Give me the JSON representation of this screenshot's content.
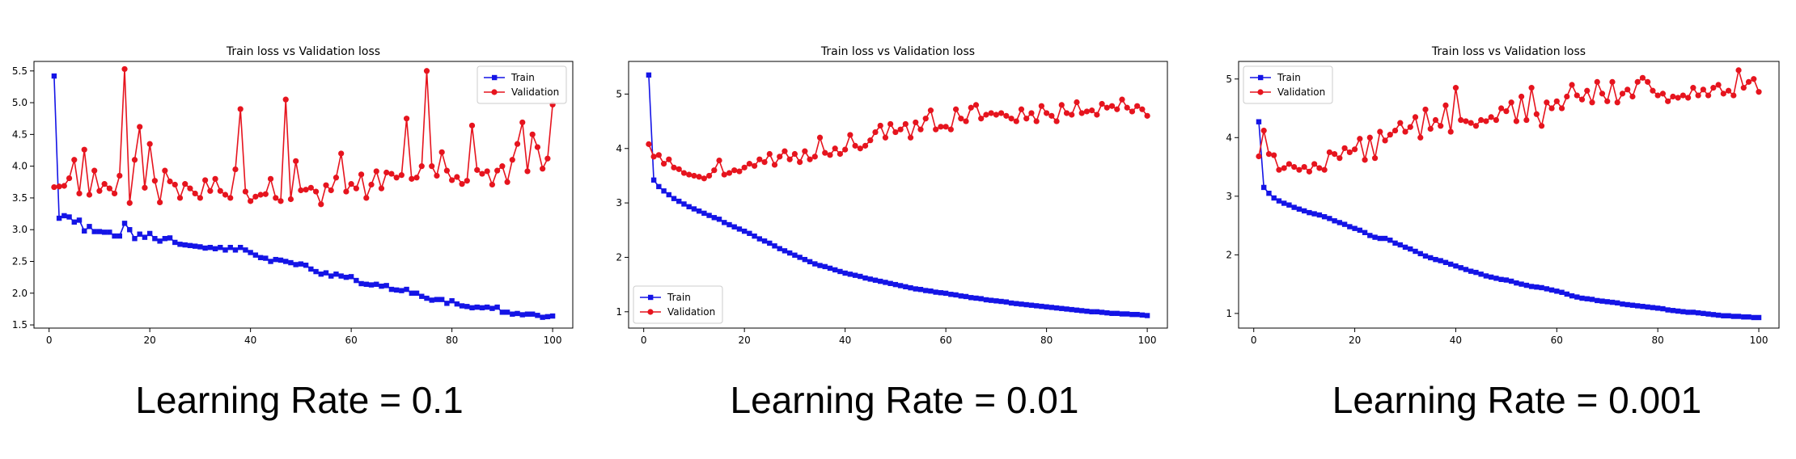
{
  "colors": {
    "train": "#1414e6",
    "validation": "#e6141e",
    "axis": "#000000"
  },
  "captions": [
    "Learning Rate = 0.1",
    "Learning Rate = 0.01",
    "Learning Rate = 0.001"
  ],
  "chart_data": [
    {
      "type": "line",
      "title": "Train loss vs Validation loss",
      "xlabel": "",
      "ylabel": "",
      "xlim": [
        -3,
        104
      ],
      "ylim": [
        1.45,
        5.65
      ],
      "xticks": [
        0,
        20,
        40,
        60,
        80,
        100
      ],
      "yticks": [
        1.5,
        2.0,
        2.5,
        3.0,
        3.5,
        4.0,
        4.5,
        5.0,
        5.5
      ],
      "ytick_labels": [
        "1.5",
        "2.0",
        "2.5",
        "3.0",
        "3.5",
        "4.0",
        "4.5",
        "5.0",
        "5.5"
      ],
      "legend": "upper right",
      "x": [
        1,
        2,
        3,
        4,
        5,
        6,
        7,
        8,
        9,
        10,
        11,
        12,
        13,
        14,
        15,
        16,
        17,
        18,
        19,
        20,
        21,
        22,
        23,
        24,
        25,
        26,
        27,
        28,
        29,
        30,
        31,
        32,
        33,
        34,
        35,
        36,
        37,
        38,
        39,
        40,
        41,
        42,
        43,
        44,
        45,
        46,
        47,
        48,
        49,
        50,
        51,
        52,
        53,
        54,
        55,
        56,
        57,
        58,
        59,
        60,
        61,
        62,
        63,
        64,
        65,
        66,
        67,
        68,
        69,
        70,
        71,
        72,
        73,
        74,
        75,
        76,
        77,
        78,
        79,
        80,
        81,
        82,
        83,
        84,
        85,
        86,
        87,
        88,
        89,
        90,
        91,
        92,
        93,
        94,
        95,
        96,
        97,
        98,
        99,
        100
      ],
      "series": [
        {
          "name": "Train",
          "marker": "square",
          "values": [
            5.42,
            3.18,
            3.22,
            3.2,
            3.12,
            3.15,
            2.98,
            3.05,
            2.97,
            2.97,
            2.96,
            2.96,
            2.9,
            2.9,
            3.1,
            3.0,
            2.86,
            2.93,
            2.88,
            2.94,
            2.86,
            2.82,
            2.86,
            2.87,
            2.8,
            2.77,
            2.76,
            2.75,
            2.74,
            2.73,
            2.71,
            2.72,
            2.7,
            2.72,
            2.68,
            2.72,
            2.68,
            2.72,
            2.68,
            2.64,
            2.6,
            2.56,
            2.55,
            2.5,
            2.53,
            2.52,
            2.5,
            2.48,
            2.45,
            2.46,
            2.44,
            2.38,
            2.34,
            2.3,
            2.32,
            2.27,
            2.3,
            2.27,
            2.25,
            2.26,
            2.2,
            2.15,
            2.14,
            2.13,
            2.14,
            2.11,
            2.12,
            2.06,
            2.05,
            2.04,
            2.06,
            2.0,
            2.0,
            1.95,
            1.92,
            1.89,
            1.9,
            1.9,
            1.84,
            1.88,
            1.83,
            1.8,
            1.79,
            1.77,
            1.78,
            1.77,
            1.78,
            1.76,
            1.78,
            1.7,
            1.7,
            1.67,
            1.68,
            1.66,
            1.67,
            1.67,
            1.65,
            1.62,
            1.63,
            1.64
          ]
        },
        {
          "name": "Validation",
          "marker": "circle",
          "values": [
            3.67,
            3.68,
            3.69,
            3.81,
            4.1,
            3.57,
            4.26,
            3.55,
            3.93,
            3.61,
            3.72,
            3.65,
            3.57,
            3.85,
            5.53,
            3.42,
            4.1,
            4.62,
            3.66,
            4.35,
            3.77,
            3.43,
            3.93,
            3.76,
            3.71,
            3.5,
            3.72,
            3.65,
            3.57,
            3.5,
            3.78,
            3.61,
            3.8,
            3.61,
            3.55,
            3.5,
            3.95,
            4.9,
            3.6,
            3.45,
            3.52,
            3.55,
            3.56,
            3.8,
            3.5,
            3.45,
            5.05,
            3.48,
            4.08,
            3.62,
            3.63,
            3.66,
            3.6,
            3.4,
            3.7,
            3.62,
            3.82,
            4.2,
            3.6,
            3.72,
            3.65,
            3.87,
            3.5,
            3.71,
            3.92,
            3.65,
            3.9,
            3.88,
            3.82,
            3.86,
            4.75,
            3.8,
            3.82,
            4.0,
            5.5,
            4.0,
            3.85,
            4.22,
            3.93,
            3.78,
            3.83,
            3.72,
            3.77,
            4.64,
            3.94,
            3.88,
            3.92,
            3.71,
            3.93,
            4.0,
            3.75,
            4.1,
            4.35,
            4.69,
            3.92,
            4.5,
            4.3,
            3.96,
            4.12,
            4.97
          ]
        }
      ]
    },
    {
      "type": "line",
      "title": "Train loss vs Validation loss",
      "xlabel": "",
      "ylabel": "",
      "xlim": [
        -3,
        104
      ],
      "ylim": [
        0.7,
        5.6
      ],
      "xticks": [
        0,
        20,
        40,
        60,
        80,
        100
      ],
      "yticks": [
        1,
        2,
        3,
        4,
        5
      ],
      "ytick_labels": [
        "1",
        "2",
        "3",
        "4",
        "5"
      ],
      "legend": "lower left",
      "x": [
        1,
        2,
        3,
        4,
        5,
        6,
        7,
        8,
        9,
        10,
        11,
        12,
        13,
        14,
        15,
        16,
        17,
        18,
        19,
        20,
        21,
        22,
        23,
        24,
        25,
        26,
        27,
        28,
        29,
        30,
        31,
        32,
        33,
        34,
        35,
        36,
        37,
        38,
        39,
        40,
        41,
        42,
        43,
        44,
        45,
        46,
        47,
        48,
        49,
        50,
        51,
        52,
        53,
        54,
        55,
        56,
        57,
        58,
        59,
        60,
        61,
        62,
        63,
        64,
        65,
        66,
        67,
        68,
        69,
        70,
        71,
        72,
        73,
        74,
        75,
        76,
        77,
        78,
        79,
        80,
        81,
        82,
        83,
        84,
        85,
        86,
        87,
        88,
        89,
        90,
        91,
        92,
        93,
        94,
        95,
        96,
        97,
        98,
        99,
        100
      ],
      "series": [
        {
          "name": "Train",
          "marker": "square",
          "values": [
            5.35,
            3.42,
            3.3,
            3.22,
            3.15,
            3.08,
            3.03,
            2.98,
            2.93,
            2.89,
            2.85,
            2.81,
            2.77,
            2.73,
            2.7,
            2.64,
            2.6,
            2.56,
            2.52,
            2.48,
            2.44,
            2.39,
            2.34,
            2.3,
            2.26,
            2.21,
            2.16,
            2.12,
            2.08,
            2.04,
            2.0,
            1.96,
            1.92,
            1.88,
            1.85,
            1.83,
            1.8,
            1.77,
            1.74,
            1.71,
            1.69,
            1.67,
            1.65,
            1.62,
            1.6,
            1.58,
            1.56,
            1.54,
            1.52,
            1.5,
            1.48,
            1.46,
            1.44,
            1.42,
            1.41,
            1.39,
            1.38,
            1.36,
            1.35,
            1.34,
            1.32,
            1.31,
            1.29,
            1.28,
            1.26,
            1.25,
            1.24,
            1.22,
            1.21,
            1.2,
            1.19,
            1.18,
            1.16,
            1.15,
            1.14,
            1.13,
            1.12,
            1.11,
            1.1,
            1.09,
            1.08,
            1.07,
            1.06,
            1.05,
            1.04,
            1.03,
            1.02,
            1.01,
            1.0,
            1.0,
            0.99,
            0.98,
            0.97,
            0.97,
            0.96,
            0.96,
            0.95,
            0.95,
            0.94,
            0.93
          ]
        },
        {
          "name": "Validation",
          "marker": "circle",
          "values": [
            4.08,
            3.85,
            3.88,
            3.72,
            3.8,
            3.65,
            3.62,
            3.55,
            3.52,
            3.5,
            3.48,
            3.45,
            3.5,
            3.6,
            3.78,
            3.52,
            3.55,
            3.6,
            3.58,
            3.65,
            3.72,
            3.68,
            3.8,
            3.75,
            3.9,
            3.7,
            3.85,
            3.95,
            3.8,
            3.9,
            3.75,
            3.95,
            3.8,
            3.85,
            4.2,
            3.92,
            3.88,
            4.0,
            3.9,
            3.98,
            4.25,
            4.05,
            4.0,
            4.05,
            4.15,
            4.3,
            4.42,
            4.2,
            4.45,
            4.3,
            4.35,
            4.45,
            4.2,
            4.48,
            4.35,
            4.55,
            4.7,
            4.35,
            4.4,
            4.4,
            4.35,
            4.72,
            4.55,
            4.5,
            4.75,
            4.8,
            4.55,
            4.62,
            4.65,
            4.62,
            4.65,
            4.6,
            4.55,
            4.5,
            4.72,
            4.55,
            4.65,
            4.5,
            4.78,
            4.65,
            4.6,
            4.5,
            4.8,
            4.65,
            4.62,
            4.85,
            4.65,
            4.68,
            4.7,
            4.62,
            4.82,
            4.75,
            4.78,
            4.72,
            4.9,
            4.75,
            4.68,
            4.78,
            4.72,
            4.6
          ]
        }
      ]
    },
    {
      "type": "line",
      "title": "Train loss vs Validation loss",
      "xlabel": "",
      "ylabel": "",
      "xlim": [
        -3,
        104
      ],
      "ylim": [
        0.75,
        5.3
      ],
      "xticks": [
        0,
        20,
        40,
        60,
        80,
        100
      ],
      "yticks": [
        1,
        2,
        3,
        4,
        5
      ],
      "ytick_labels": [
        "1",
        "2",
        "3",
        "4",
        "5"
      ],
      "legend": "upper left",
      "x": [
        1,
        2,
        3,
        4,
        5,
        6,
        7,
        8,
        9,
        10,
        11,
        12,
        13,
        14,
        15,
        16,
        17,
        18,
        19,
        20,
        21,
        22,
        23,
        24,
        25,
        26,
        27,
        28,
        29,
        30,
        31,
        32,
        33,
        34,
        35,
        36,
        37,
        38,
        39,
        40,
        41,
        42,
        43,
        44,
        45,
        46,
        47,
        48,
        49,
        50,
        51,
        52,
        53,
        54,
        55,
        56,
        57,
        58,
        59,
        60,
        61,
        62,
        63,
        64,
        65,
        66,
        67,
        68,
        69,
        70,
        71,
        72,
        73,
        74,
        75,
        76,
        77,
        78,
        79,
        80,
        81,
        82,
        83,
        84,
        85,
        86,
        87,
        88,
        89,
        90,
        91,
        92,
        93,
        94,
        95,
        96,
        97,
        98,
        99,
        100
      ],
      "series": [
        {
          "name": "Train",
          "marker": "square",
          "values": [
            4.27,
            3.15,
            3.05,
            2.97,
            2.92,
            2.88,
            2.85,
            2.81,
            2.78,
            2.75,
            2.72,
            2.7,
            2.68,
            2.65,
            2.62,
            2.58,
            2.55,
            2.52,
            2.48,
            2.45,
            2.42,
            2.38,
            2.33,
            2.3,
            2.28,
            2.28,
            2.25,
            2.2,
            2.17,
            2.13,
            2.1,
            2.06,
            2.02,
            1.98,
            1.95,
            1.92,
            1.9,
            1.87,
            1.84,
            1.81,
            1.78,
            1.75,
            1.72,
            1.7,
            1.67,
            1.64,
            1.62,
            1.6,
            1.58,
            1.57,
            1.55,
            1.52,
            1.5,
            1.48,
            1.46,
            1.45,
            1.44,
            1.42,
            1.4,
            1.38,
            1.36,
            1.33,
            1.3,
            1.28,
            1.26,
            1.25,
            1.24,
            1.22,
            1.21,
            1.2,
            1.19,
            1.18,
            1.16,
            1.15,
            1.14,
            1.13,
            1.12,
            1.11,
            1.1,
            1.09,
            1.08,
            1.06,
            1.05,
            1.04,
            1.03,
            1.02,
            1.02,
            1.01,
            1.0,
            0.99,
            0.98,
            0.97,
            0.96,
            0.96,
            0.95,
            0.95,
            0.94,
            0.94,
            0.93,
            0.93
          ]
        },
        {
          "name": "Validation",
          "marker": "circle",
          "values": [
            3.68,
            4.12,
            3.72,
            3.7,
            3.45,
            3.48,
            3.55,
            3.5,
            3.45,
            3.5,
            3.42,
            3.55,
            3.48,
            3.45,
            3.75,
            3.72,
            3.65,
            3.82,
            3.75,
            3.8,
            3.98,
            3.62,
            4.0,
            3.65,
            4.1,
            3.95,
            4.05,
            4.12,
            4.25,
            4.1,
            4.18,
            4.35,
            4.0,
            4.48,
            4.15,
            4.3,
            4.2,
            4.55,
            4.1,
            4.85,
            4.3,
            4.28,
            4.25,
            4.2,
            4.3,
            4.28,
            4.35,
            4.3,
            4.5,
            4.45,
            4.6,
            4.28,
            4.7,
            4.3,
            4.85,
            4.4,
            4.2,
            4.6,
            4.5,
            4.62,
            4.5,
            4.7,
            4.9,
            4.72,
            4.65,
            4.8,
            4.6,
            4.95,
            4.75,
            4.62,
            4.95,
            4.6,
            4.75,
            4.82,
            4.7,
            4.95,
            5.02,
            4.95,
            4.8,
            4.72,
            4.75,
            4.62,
            4.7,
            4.68,
            4.72,
            4.68,
            4.85,
            4.72,
            4.82,
            4.72,
            4.85,
            4.9,
            4.75,
            4.8,
            4.72,
            5.15,
            4.85,
            4.95,
            5.0,
            4.78
          ]
        }
      ]
    }
  ]
}
